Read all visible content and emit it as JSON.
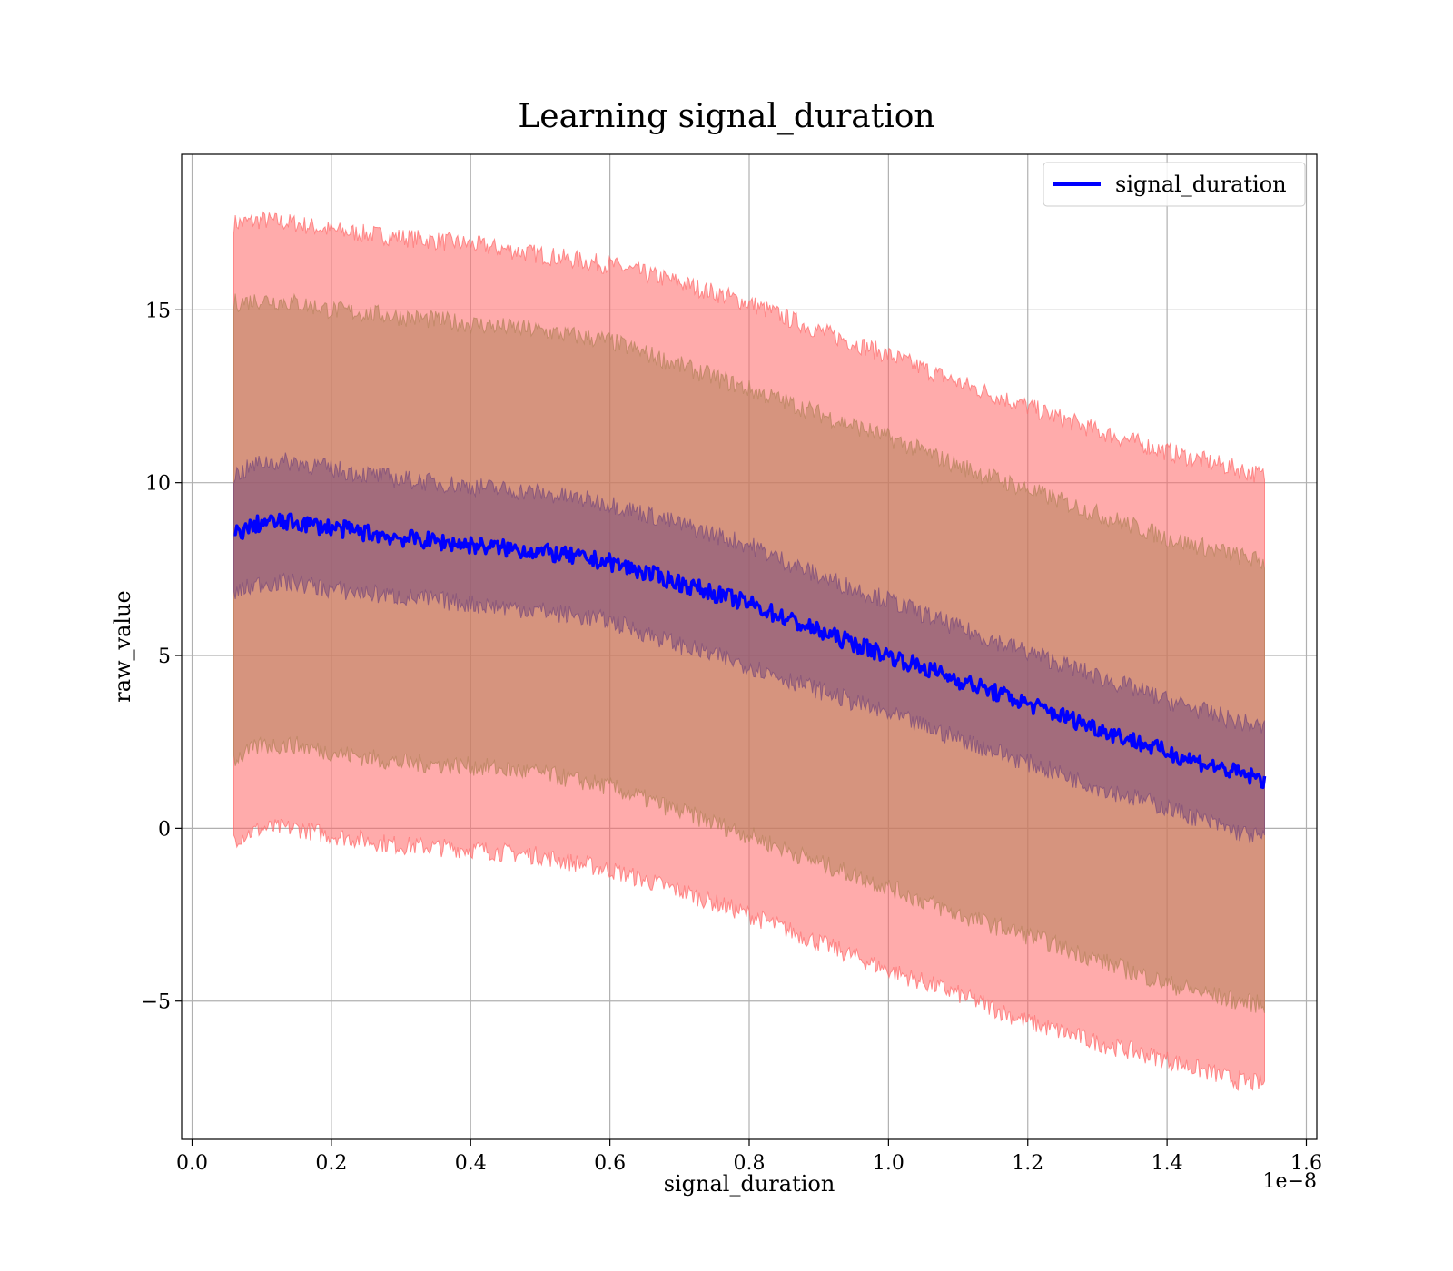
{
  "chart_data": {
    "type": "line",
    "title": "Learning signal_duration",
    "xlabel": "signal_duration",
    "ylabel": "raw_value",
    "x_offset_label": "1e−8",
    "xlim": [
      -0.015,
      1.615
    ],
    "ylim": [
      -9.0,
      19.5
    ],
    "x_ticks": [
      0.0,
      0.2,
      0.4,
      0.6,
      0.8,
      1.0,
      1.2,
      1.4,
      1.6
    ],
    "x_tick_labels": [
      "0.0",
      "0.2",
      "0.4",
      "0.6",
      "0.8",
      "1.0",
      "1.2",
      "1.4",
      "1.6"
    ],
    "y_ticks": [
      -5,
      0,
      5,
      10,
      15
    ],
    "y_tick_labels": [
      "−5",
      "0",
      "5",
      "10",
      "15"
    ],
    "grid": true,
    "legend_position": "top-right",
    "series": [
      {
        "name": "signal_duration",
        "color": "#0000ff",
        "x": [
          0.06,
          0.1,
          0.15,
          0.2,
          0.3,
          0.4,
          0.5,
          0.6,
          0.7,
          0.8,
          0.9,
          1.0,
          1.1,
          1.2,
          1.3,
          1.4,
          1.5,
          1.54
        ],
        "values": [
          8.5,
          8.85,
          8.85,
          8.7,
          8.4,
          8.2,
          8.0,
          7.7,
          7.1,
          6.5,
          5.7,
          5.0,
          4.3,
          3.6,
          2.9,
          2.2,
          1.6,
          1.4
        ]
      }
    ],
    "bands": [
      {
        "color": "#ff6666",
        "upper": [
          17.5,
          17.6,
          17.5,
          17.3,
          17.1,
          16.9,
          16.6,
          16.3,
          15.8,
          15.2,
          14.4,
          13.7,
          12.9,
          12.2,
          11.5,
          10.9,
          10.4,
          10.2
        ],
        "lower": [
          -0.3,
          0.0,
          0.0,
          -0.2,
          -0.5,
          -0.6,
          -0.8,
          -1.2,
          -1.8,
          -2.5,
          -3.3,
          -4.1,
          -4.8,
          -5.6,
          -6.2,
          -6.7,
          -7.3,
          -7.4
        ]
      },
      {
        "color": "#b5815a",
        "upper": [
          15.2,
          15.3,
          15.2,
          15.0,
          14.8,
          14.6,
          14.4,
          14.1,
          13.4,
          12.7,
          12.0,
          11.3,
          10.5,
          9.8,
          9.1,
          8.4,
          7.9,
          7.7
        ],
        "lower": [
          2.0,
          2.4,
          2.4,
          2.2,
          1.9,
          1.8,
          1.6,
          1.2,
          0.5,
          -0.2,
          -1.0,
          -1.7,
          -2.5,
          -3.1,
          -3.8,
          -4.5,
          -5.0,
          -5.1
        ]
      },
      {
        "color": "#7a4a7a",
        "upper": [
          10.2,
          10.6,
          10.6,
          10.4,
          10.1,
          9.9,
          9.7,
          9.4,
          8.8,
          8.2,
          7.3,
          6.6,
          5.8,
          5.1,
          4.4,
          3.7,
          3.1,
          2.9
        ],
        "lower": [
          6.8,
          7.1,
          7.1,
          6.9,
          6.7,
          6.5,
          6.3,
          6.0,
          5.3,
          4.7,
          4.0,
          3.3,
          2.6,
          1.9,
          1.2,
          0.6,
          -0.1,
          -0.3
        ]
      }
    ]
  }
}
